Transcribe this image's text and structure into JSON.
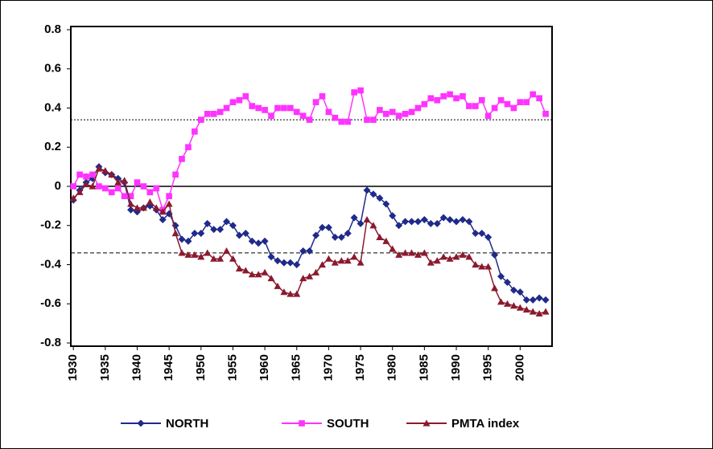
{
  "chart_data": {
    "type": "line",
    "x": [
      1930,
      1931,
      1932,
      1933,
      1934,
      1935,
      1936,
      1937,
      1938,
      1939,
      1940,
      1941,
      1942,
      1943,
      1944,
      1945,
      1946,
      1947,
      1948,
      1949,
      1950,
      1951,
      1952,
      1953,
      1954,
      1955,
      1956,
      1957,
      1958,
      1959,
      1960,
      1961,
      1962,
      1963,
      1964,
      1965,
      1966,
      1967,
      1968,
      1969,
      1970,
      1971,
      1972,
      1973,
      1974,
      1975,
      1976,
      1977,
      1978,
      1979,
      1980,
      1981,
      1982,
      1983,
      1984,
      1985,
      1986,
      1987,
      1988,
      1989,
      1990,
      1991,
      1992,
      1993,
      1994,
      1995,
      1996,
      1997,
      1998,
      1999,
      2000,
      2001,
      2002,
      2003,
      2004
    ],
    "xlim": [
      1929.6,
      2005
    ],
    "xticks": [
      1930,
      1935,
      1940,
      1945,
      1950,
      1955,
      1960,
      1965,
      1970,
      1975,
      1980,
      1985,
      1990,
      1995,
      2000
    ],
    "ylim": [
      -0.8,
      0.8
    ],
    "yticks": [
      {
        "value": -0.8,
        "label": "-0.8"
      },
      {
        "value": -0.6,
        "label": "-0.6"
      },
      {
        "value": -0.4,
        "label": "-0.4"
      },
      {
        "value": -0.2,
        "label": "-0.2"
      },
      0,
      {
        "value": 0.2,
        "label": "0.2"
      },
      {
        "value": 0.4,
        "label": "0.4"
      },
      {
        "value": 0.6,
        "label": "0.6"
      },
      {
        "value": 0.8,
        "label": "0.8"
      }
    ],
    "reference_lines": [
      {
        "value": 0.34,
        "style": "dotted"
      },
      {
        "value": -0.34,
        "style": "dashed"
      }
    ],
    "series": [
      {
        "name": "NORTH",
        "color": "#1f2a8a",
        "marker": "diamond",
        "values": [
          -0.07,
          -0.02,
          0.02,
          0.04,
          0.1,
          0.07,
          0.06,
          0.04,
          0.02,
          -0.12,
          -0.13,
          -0.11,
          -0.1,
          -0.12,
          -0.17,
          -0.14,
          -0.2,
          -0.27,
          -0.28,
          -0.24,
          -0.24,
          -0.19,
          -0.22,
          -0.22,
          -0.18,
          -0.2,
          -0.25,
          -0.24,
          -0.28,
          -0.29,
          -0.28,
          -0.36,
          -0.38,
          -0.39,
          -0.39,
          -0.4,
          -0.33,
          -0.33,
          -0.25,
          -0.21,
          -0.21,
          -0.26,
          -0.26,
          -0.24,
          -0.16,
          -0.19,
          -0.02,
          -0.04,
          -0.06,
          -0.09,
          -0.15,
          -0.2,
          -0.18,
          -0.18,
          -0.18,
          -0.17,
          -0.19,
          -0.19,
          -0.16,
          -0.17,
          -0.18,
          -0.17,
          -0.18,
          -0.24,
          -0.24,
          -0.26,
          -0.35,
          -0.46,
          -0.49,
          -0.53,
          -0.54,
          -0.58,
          -0.58,
          -0.57,
          -0.58
        ]
      },
      {
        "name": "SOUTH",
        "color": "#ff33ff",
        "marker": "square",
        "values": [
          0.0,
          0.06,
          0.05,
          0.06,
          0.0,
          -0.01,
          -0.03,
          -0.01,
          -0.05,
          -0.05,
          0.02,
          0.0,
          -0.03,
          -0.01,
          -0.12,
          -0.05,
          0.06,
          0.14,
          0.2,
          0.28,
          0.34,
          0.37,
          0.37,
          0.38,
          0.4,
          0.43,
          0.44,
          0.46,
          0.41,
          0.4,
          0.39,
          0.36,
          0.4,
          0.4,
          0.4,
          0.38,
          0.36,
          0.34,
          0.43,
          0.46,
          0.38,
          0.35,
          0.33,
          0.33,
          0.48,
          0.49,
          0.34,
          0.34,
          0.39,
          0.37,
          0.38,
          0.36,
          0.37,
          0.38,
          0.4,
          0.42,
          0.45,
          0.44,
          0.46,
          0.47,
          0.45,
          0.46,
          0.41,
          0.41,
          0.44,
          0.36,
          0.4,
          0.44,
          0.42,
          0.4,
          0.43,
          0.43,
          0.47,
          0.45,
          0.37
        ]
      },
      {
        "name": "PMTA index",
        "color": "#8b1a2e",
        "marker": "triangle",
        "values": [
          -0.06,
          -0.03,
          0.01,
          0.0,
          0.09,
          0.08,
          0.06,
          0.02,
          0.03,
          -0.09,
          -0.11,
          -0.11,
          -0.08,
          -0.11,
          -0.13,
          -0.09,
          -0.24,
          -0.34,
          -0.35,
          -0.35,
          -0.36,
          -0.34,
          -0.37,
          -0.37,
          -0.33,
          -0.37,
          -0.42,
          -0.43,
          -0.45,
          -0.45,
          -0.44,
          -0.47,
          -0.51,
          -0.54,
          -0.55,
          -0.55,
          -0.47,
          -0.46,
          -0.44,
          -0.4,
          -0.37,
          -0.39,
          -0.38,
          -0.38,
          -0.36,
          -0.39,
          -0.17,
          -0.2,
          -0.26,
          -0.28,
          -0.32,
          -0.35,
          -0.34,
          -0.34,
          -0.35,
          -0.34,
          -0.39,
          -0.38,
          -0.36,
          -0.37,
          -0.36,
          -0.35,
          -0.36,
          -0.4,
          -0.41,
          -0.41,
          -0.52,
          -0.59,
          -0.6,
          -0.61,
          -0.62,
          -0.63,
          -0.64,
          -0.65,
          -0.64
        ]
      }
    ]
  }
}
